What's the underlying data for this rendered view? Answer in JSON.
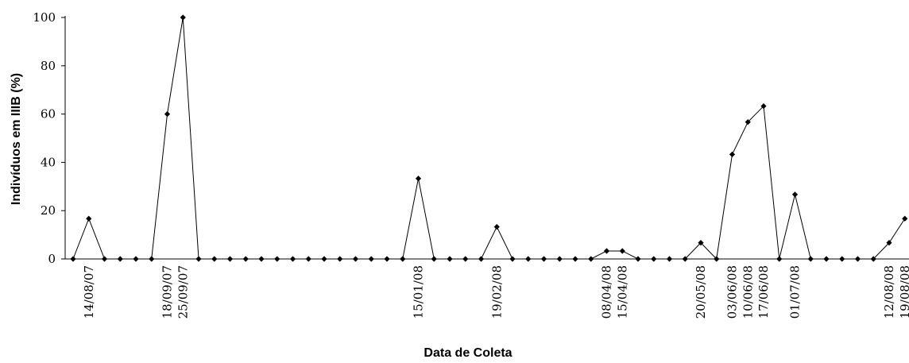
{
  "chart_data": {
    "type": "line",
    "xlabel": "Data de Coleta",
    "ylabel": "Indivíduos em IIIB (%)",
    "ylim": [
      0,
      100
    ],
    "yticks": [
      "0",
      "20",
      "40",
      "60",
      "80",
      "100"
    ],
    "grid": false,
    "legend": "none",
    "series_color": "#000000",
    "marker": "diamond",
    "values": [
      0,
      16.7,
      0,
      0,
      0,
      0,
      60,
      100,
      0,
      0,
      0,
      0,
      0,
      0,
      0,
      0,
      0,
      0,
      0,
      0,
      0,
      0,
      33.3,
      0,
      0,
      0,
      0,
      13.3,
      0,
      0,
      0,
      0,
      0,
      0,
      3.3,
      3.3,
      0,
      0,
      0,
      0,
      6.7,
      0,
      43.3,
      56.7,
      63.3,
      0,
      26.7,
      0,
      0,
      0,
      0,
      0,
      6.7,
      16.7
    ],
    "labeled_dates": [
      {
        "index": 1,
        "date": "14/08/07"
      },
      {
        "index": 6,
        "date": "18/09/07"
      },
      {
        "index": 7,
        "date": "25/09/07"
      },
      {
        "index": 22,
        "date": "15/01/08"
      },
      {
        "index": 27,
        "date": "19/02/08"
      },
      {
        "index": 34,
        "date": "08/04/08"
      },
      {
        "index": 35,
        "date": "15/04/08"
      },
      {
        "index": 40,
        "date": "20/05/08"
      },
      {
        "index": 42,
        "date": "03/06/08"
      },
      {
        "index": 43,
        "date": "10/06/08"
      },
      {
        "index": 44,
        "date": "17/06/08"
      },
      {
        "index": 46,
        "date": "01/07/08"
      },
      {
        "index": 52,
        "date": "12/08/08"
      },
      {
        "index": 53,
        "date": "19/08/08"
      }
    ]
  }
}
